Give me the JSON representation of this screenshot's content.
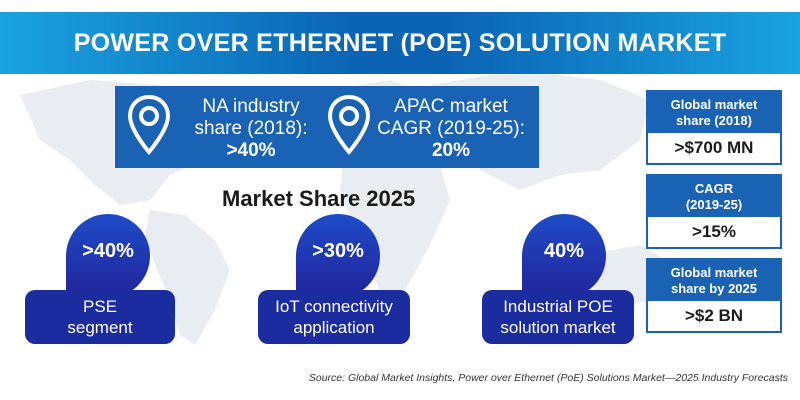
{
  "title": "POWER OVER ETHERNET (POE) SOLUTION MARKET",
  "top_stats": [
    {
      "label_line1": "NA industry",
      "label_line2": "share (2018):",
      "value": ">40%",
      "icon": "location-pin-icon"
    },
    {
      "label_line1": "APAC market",
      "label_line2": "CAGR (2019-25):",
      "value": "20%",
      "icon": "location-pin-icon"
    }
  ],
  "market_share": {
    "heading": "Market Share 2025",
    "items": [
      {
        "value": ">40%",
        "line1": "PSE",
        "line2": "segment"
      },
      {
        "value": ">30%",
        "line1": "IoT connectivity",
        "line2": "application"
      },
      {
        "value": "40%",
        "line1": "Industrial POE",
        "line2": "solution market"
      }
    ]
  },
  "side_stats": [
    {
      "head_line1": "Global market",
      "head_line2": "share (2018)",
      "value": ">$700 MN"
    },
    {
      "head_line1": "CAGR",
      "head_line2": "(2019-25)",
      "value": ">15%"
    },
    {
      "head_line1": "Global market",
      "head_line2": "share by 2025",
      "value": ">$2 BN"
    }
  ],
  "source": "Source: Global Market Insights, Power over Ethernet (PoE) Solutions Market—2025 Industry Forecasts",
  "colors": {
    "primary_blue": "#1a62b4",
    "light_blue": "#1aa3e0",
    "navy": "#1b2c9e",
    "map_grey": "#e9edf1"
  }
}
